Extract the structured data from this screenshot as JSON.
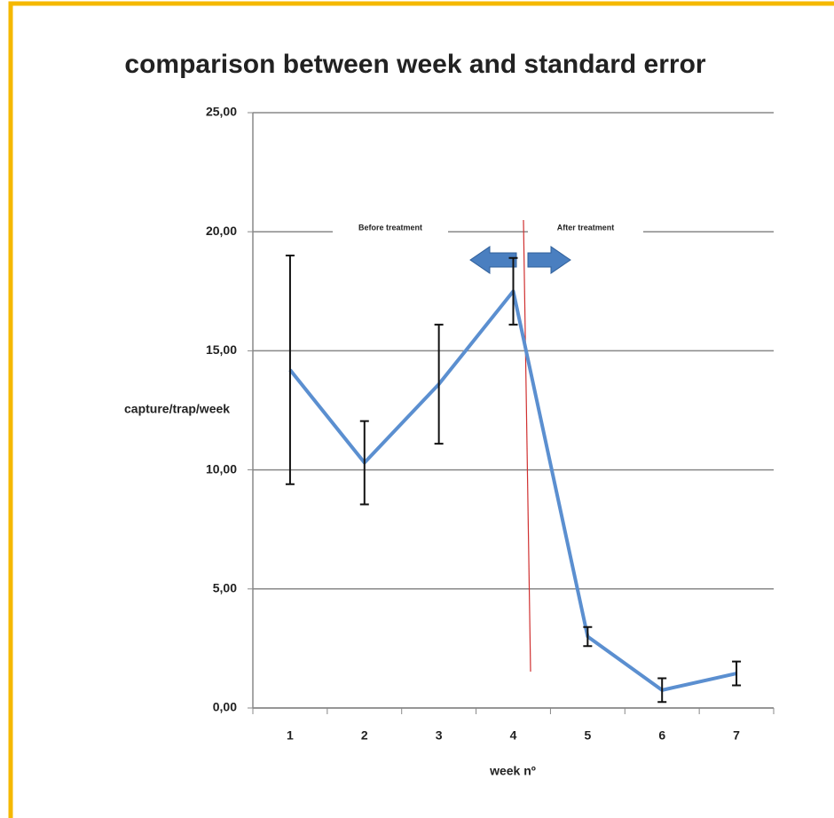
{
  "chart_data": {
    "type": "line",
    "title": "comparison between week and standard error",
    "x_label": "week nº",
    "y_label": "capture/trap/week",
    "categories": [
      "1",
      "2",
      "3",
      "4",
      "5",
      "6",
      "7"
    ],
    "values": [
      14.2,
      10.3,
      13.6,
      17.5,
      3.0,
      0.75,
      1.45
    ],
    "errors": [
      4.8,
      1.75,
      2.5,
      1.4,
      0.4,
      0.5,
      0.5
    ],
    "color": "#5b8fd0",
    "ylim": [
      0,
      25
    ],
    "yticks": [
      {
        "value": 0,
        "label": "0,00"
      },
      {
        "value": 5,
        "label": "5,00"
      },
      {
        "value": 10,
        "label": "10,00"
      },
      {
        "value": 15,
        "label": "15,00"
      },
      {
        "value": 20,
        "label": "20,00"
      },
      {
        "value": 25,
        "label": "25,00"
      }
    ],
    "grid": true,
    "annotations": [
      "Before treatment",
      "After treatment"
    ]
  }
}
